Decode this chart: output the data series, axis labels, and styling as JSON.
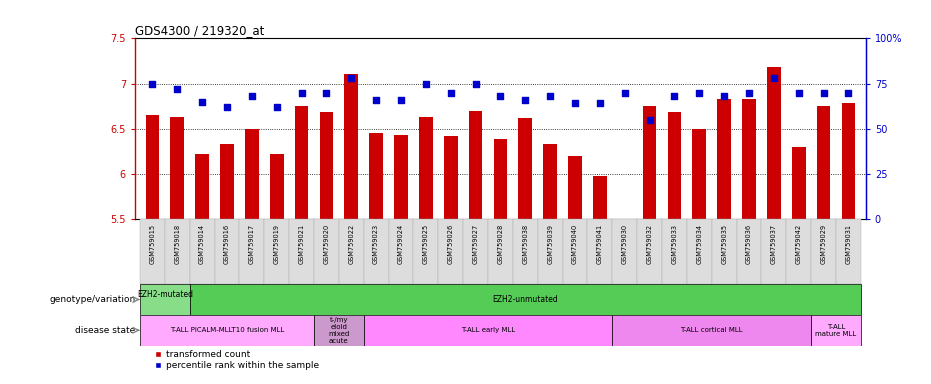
{
  "title": "GDS4300 / 219320_at",
  "samples": [
    "GSM759015",
    "GSM759018",
    "GSM759014",
    "GSM759016",
    "GSM759017",
    "GSM759019",
    "GSM759021",
    "GSM759020",
    "GSM759022",
    "GSM759023",
    "GSM759024",
    "GSM759025",
    "GSM759026",
    "GSM759027",
    "GSM759028",
    "GSM759038",
    "GSM759039",
    "GSM759040",
    "GSM759041",
    "GSM759030",
    "GSM759032",
    "GSM759033",
    "GSM759034",
    "GSM759035",
    "GSM759036",
    "GSM759037",
    "GSM759042",
    "GSM759029",
    "GSM759031"
  ],
  "bar_values": [
    6.65,
    6.63,
    6.22,
    6.33,
    6.5,
    6.22,
    6.75,
    6.68,
    7.1,
    6.45,
    6.43,
    6.63,
    6.42,
    6.7,
    6.38,
    6.62,
    6.33,
    6.2,
    5.98,
    5.5,
    6.75,
    6.68,
    6.5,
    6.83,
    6.83,
    7.18,
    6.3,
    6.75,
    6.78
  ],
  "dot_values": [
    75,
    72,
    65,
    62,
    68,
    62,
    70,
    70,
    78,
    66,
    66,
    75,
    70,
    75,
    68,
    66,
    68,
    64,
    64,
    70,
    55,
    68,
    70,
    68,
    70,
    78,
    70,
    70,
    70
  ],
  "ylim_left": [
    5.5,
    7.5
  ],
  "ylim_right": [
    0,
    100
  ],
  "yticks_left": [
    5.5,
    6.0,
    6.5,
    7.0,
    7.5
  ],
  "ytick_labels_left": [
    "5.5",
    "6",
    "6.5",
    "7",
    "7.5"
  ],
  "yticks_right": [
    0,
    25,
    50,
    75,
    100
  ],
  "ytick_labels_right": [
    "0",
    "25",
    "50",
    "75",
    "100%"
  ],
  "bar_color": "#cc0000",
  "dot_color": "#0000cc",
  "genotype_segments": [
    {
      "text": "EZH2-mutated\n",
      "start": 0,
      "end": 2,
      "color": "#88dd88"
    },
    {
      "text": "EZH2-unmutated",
      "start": 2,
      "end": 29,
      "color": "#55cc55"
    }
  ],
  "disease_segments": [
    {
      "text": "T-ALL PICALM-MLLT10 fusion MLL",
      "start": 0,
      "end": 7,
      "color": "#ffaaff"
    },
    {
      "text": "t-/my\neloid\nmixed\nacute",
      "start": 7,
      "end": 9,
      "color": "#cc99cc"
    },
    {
      "text": "T-ALL early MLL",
      "start": 9,
      "end": 19,
      "color": "#ff88ff"
    },
    {
      "text": "T-ALL cortical MLL",
      "start": 19,
      "end": 27,
      "color": "#ee88ee"
    },
    {
      "text": "T-ALL\nmature MLL",
      "start": 27,
      "end": 29,
      "color": "#ffaaff"
    }
  ],
  "genotype_label": "genotype/variation",
  "disease_label": "disease state",
  "legend_items": [
    {
      "color": "#cc0000",
      "label": "transformed count"
    },
    {
      "color": "#0000cc",
      "label": "percentile rank within the sample"
    }
  ],
  "tick_bg_color": "#dddddd",
  "tick_border_color": "#aaaaaa"
}
